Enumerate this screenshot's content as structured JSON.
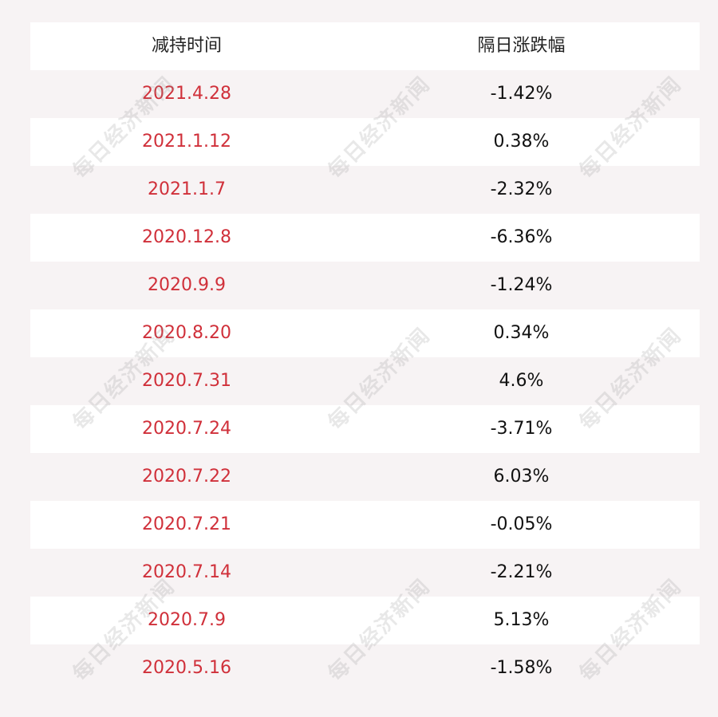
{
  "table": {
    "headers": {
      "date": "减持时间",
      "change": "隔日涨跌幅"
    },
    "rows": [
      {
        "date": "2021.4.28",
        "change": "-1.42%"
      },
      {
        "date": "2021.1.12",
        "change": "0.38%"
      },
      {
        "date": "2021.1.7",
        "change": "-2.32%"
      },
      {
        "date": "2020.12.8",
        "change": "-6.36%"
      },
      {
        "date": "2020.9.9",
        "change": "-1.24%"
      },
      {
        "date": "2020.8.20",
        "change": "0.34%"
      },
      {
        "date": "2020.7.31",
        "change": "4.6%"
      },
      {
        "date": "2020.7.24",
        "change": "-3.71%"
      },
      {
        "date": "2020.7.22",
        "change": "6.03%"
      },
      {
        "date": "2020.7.21",
        "change": "-0.05%"
      },
      {
        "date": "2020.7.14",
        "change": "-2.21%"
      },
      {
        "date": "2020.7.9",
        "change": "5.13%"
      },
      {
        "date": "2020.5.16",
        "change": "-1.58%"
      }
    ]
  },
  "watermark_text": "每日经济新闻",
  "colors": {
    "date_text": "#d0303a",
    "value_text": "#111111",
    "row_white": "#ffffff",
    "row_tint": "#f7f3f4"
  }
}
